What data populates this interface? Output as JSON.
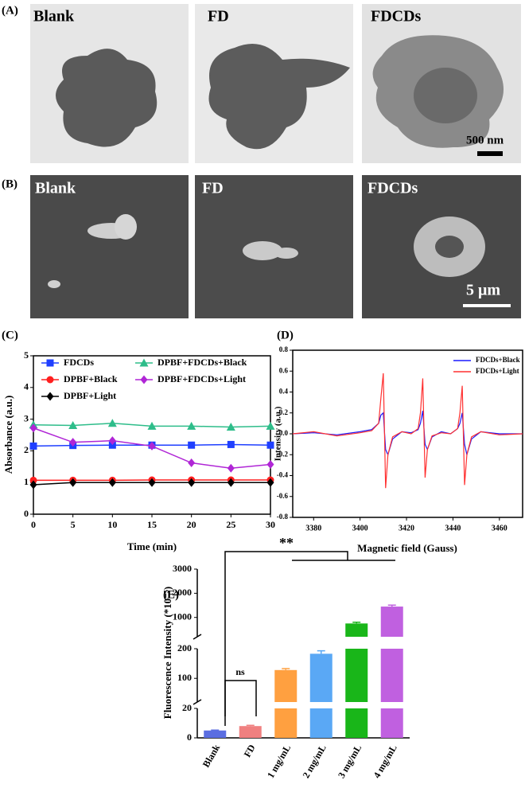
{
  "micrographs": {
    "A": {
      "label": "(A)",
      "panels": [
        "Blank",
        "FD",
        "FDCDs"
      ],
      "scale_bar": "500 nm"
    },
    "B": {
      "label": "(B)",
      "panels": [
        "Blank",
        "FD",
        "FDCDs"
      ],
      "scale_bar": "5 μm"
    }
  },
  "chart_data": [
    {
      "type": "line",
      "panel_label": "(C)",
      "xlabel": "Time (min)",
      "ylabel": "Absorbance (a.u.)",
      "x": [
        0,
        5,
        10,
        15,
        20,
        25,
        30
      ],
      "xlim": [
        0,
        30
      ],
      "xticks": [
        0,
        5,
        10,
        15,
        20,
        25,
        30
      ],
      "ylim": [
        0,
        5
      ],
      "yticks": [
        0,
        1,
        2,
        3,
        4,
        5
      ],
      "series": [
        {
          "name": "FDCDs",
          "color": "#1f3fff",
          "marker": "square",
          "values": [
            2.15,
            2.17,
            2.18,
            2.18,
            2.18,
            2.2,
            2.18
          ]
        },
        {
          "name": "DPBF+Black",
          "color": "#ff1f1f",
          "marker": "circle",
          "values": [
            1.07,
            1.07,
            1.07,
            1.08,
            1.08,
            1.08,
            1.08
          ]
        },
        {
          "name": "DPBF+Light",
          "color": "#000000",
          "marker": "diamond",
          "values": [
            0.93,
            1.0,
            1.0,
            1.0,
            1.0,
            1.0,
            1.0
          ]
        },
        {
          "name": "DPBF+FDCDs+Black",
          "color": "#2ebd8a",
          "marker": "triangle",
          "values": [
            2.82,
            2.8,
            2.87,
            2.78,
            2.78,
            2.75,
            2.78
          ]
        },
        {
          "name": "DPBF+FDCDs+Light",
          "color": "#b026d6",
          "marker": "diamond",
          "values": [
            2.72,
            2.27,
            2.32,
            2.15,
            1.62,
            1.45,
            1.57
          ]
        }
      ]
    },
    {
      "type": "line",
      "panel_label": "(D)",
      "xlabel": "Magnetic field (Gauss)",
      "ylabel": "Intensity (a.u.)",
      "x": [
        3371,
        3380,
        3390,
        3400,
        3405,
        3408,
        3409,
        3410,
        3411,
        3412,
        3414,
        3418,
        3422,
        3425,
        3426,
        3427,
        3428,
        3429,
        3431,
        3435,
        3439,
        3442,
        3443,
        3444,
        3445,
        3446,
        3448,
        3452,
        3460,
        3470
      ],
      "xlim": [
        3371,
        3470
      ],
      "xticks": [
        3380,
        3400,
        3420,
        3440,
        3460
      ],
      "ylim": [
        -0.8,
        0.8
      ],
      "yticks": [
        -0.8,
        -0.6,
        -0.4,
        -0.2,
        {
          "value": 0,
          "label": "0.0"
        },
        0.2,
        0.4,
        0.6,
        0.8
      ],
      "series": [
        {
          "name": "FDCDs+Black",
          "color": "#1a1aff",
          "values": [
            0,
            0.01,
            -0.01,
            0.02,
            0.04,
            0.1,
            0.18,
            0.2,
            -0.15,
            -0.2,
            -0.05,
            0.02,
            0.01,
            0.04,
            0.1,
            0.22,
            -0.1,
            -0.15,
            -0.03,
            0.02,
            0,
            0.05,
            0.1,
            0.2,
            -0.1,
            -0.2,
            -0.05,
            0.02,
            0,
            0
          ]
        },
        {
          "name": "FDCDs+Light",
          "color": "#ff3030",
          "values": [
            0,
            0.02,
            -0.02,
            0.01,
            0.03,
            0.1,
            0.35,
            0.58,
            -0.52,
            -0.2,
            -0.03,
            0.02,
            0,
            0.05,
            0.2,
            0.53,
            -0.42,
            -0.15,
            -0.02,
            0.01,
            0,
            0.05,
            0.2,
            0.46,
            -0.49,
            -0.2,
            -0.03,
            0.02,
            -0.01,
            0
          ]
        }
      ]
    },
    {
      "type": "bar",
      "panel_label": "(E)",
      "ylabel": "Fluorescence Intensity (*10⁻⁵)",
      "categories": [
        "Blank",
        "FD",
        "1 mg/mL",
        "2 mg/mL",
        "3 mg/mL",
        "4 mg/mL"
      ],
      "values": [
        5,
        8,
        128,
        183,
        750,
        1450
      ],
      "errors": [
        0.3,
        0.5,
        5,
        10,
        50,
        60
      ],
      "colors": [
        "#5b6ee1",
        "#f08080",
        "#ffa040",
        "#5aa8f5",
        "#19b619",
        "#c060e0"
      ],
      "ylim": [
        0,
        3000
      ],
      "y_segments": [
        [
          0,
          20
        ],
        [
          20,
          200
        ],
        [
          200,
          3000
        ]
      ],
      "yticks": [
        0,
        20,
        100,
        200,
        1000,
        2000,
        3000
      ],
      "annotations": [
        "ns",
        "**"
      ]
    }
  ]
}
